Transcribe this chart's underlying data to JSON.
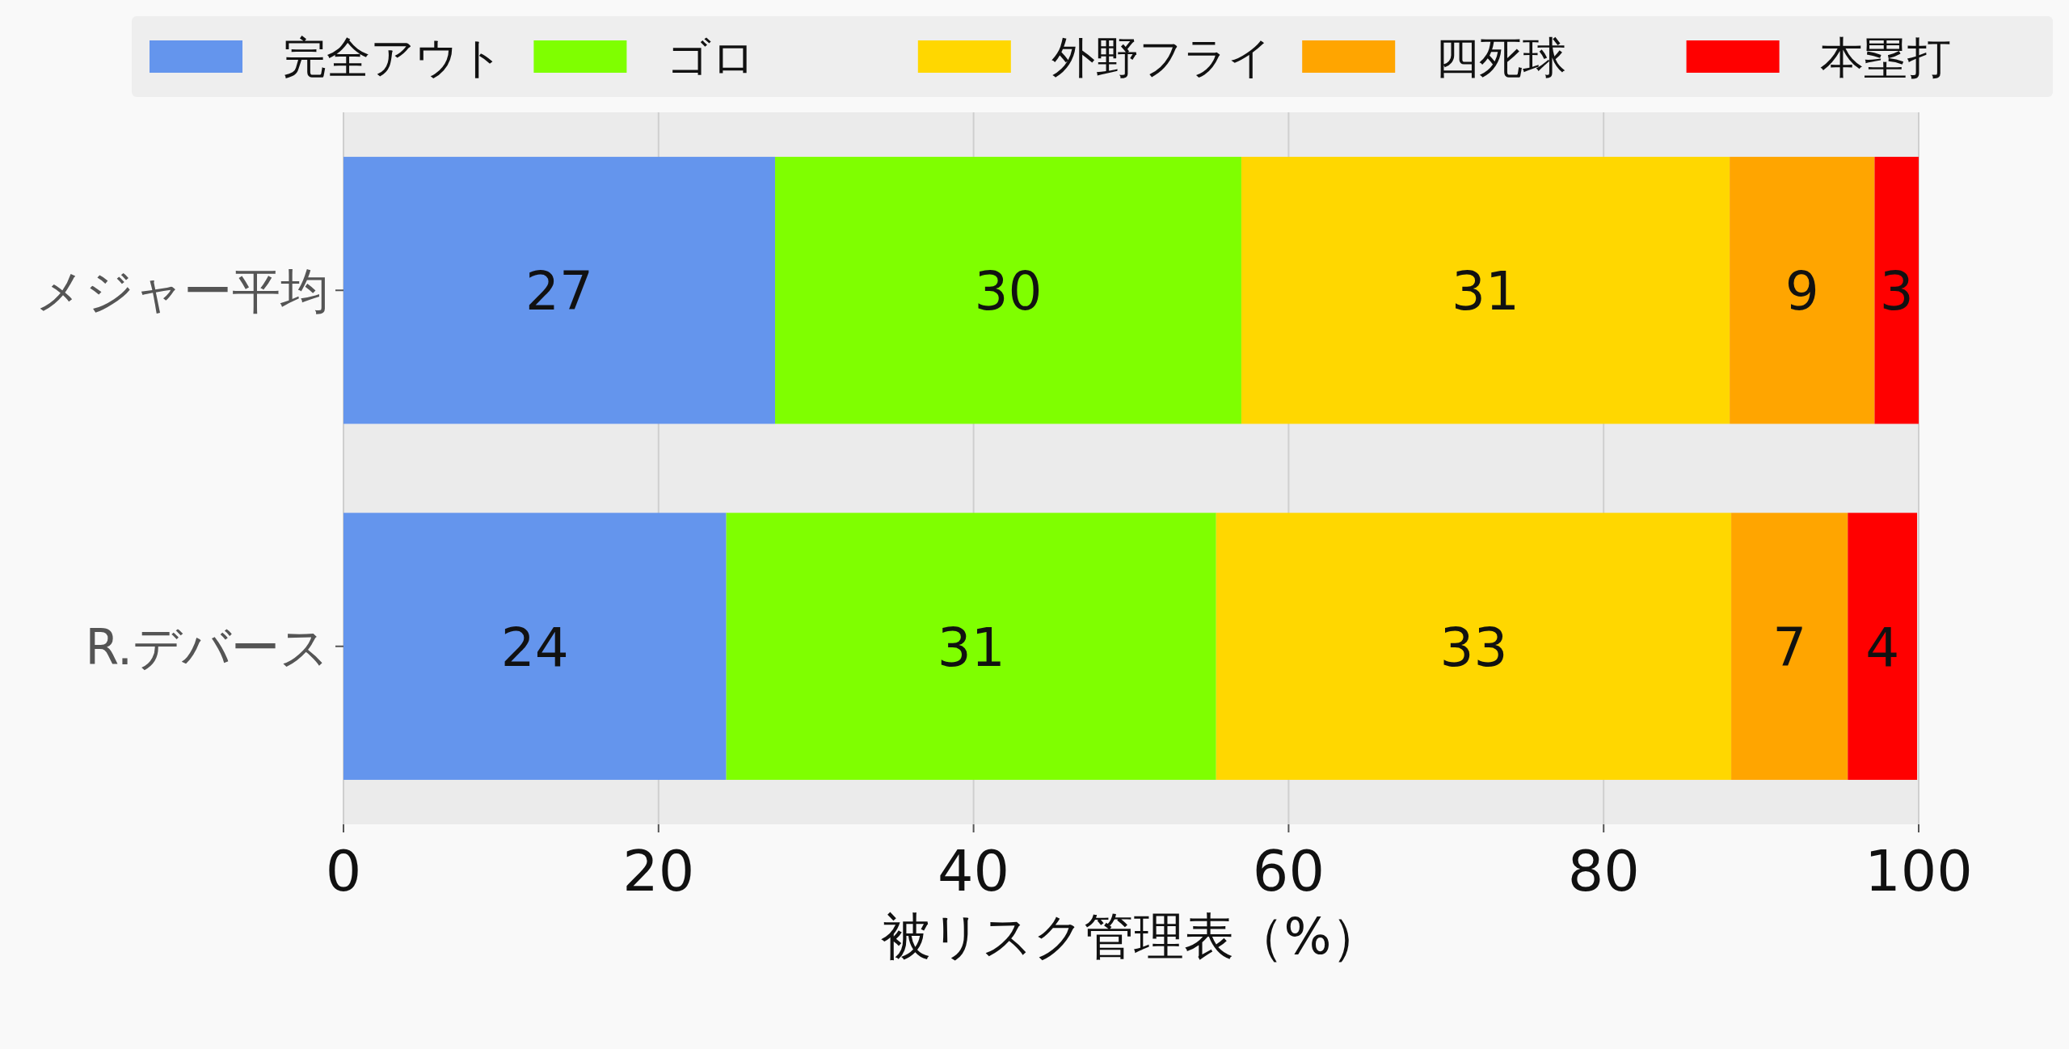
{
  "chart_data": {
    "type": "bar",
    "orientation": "horizontal",
    "stacked": true,
    "categories": [
      "メジャー平均",
      "R.デバース"
    ],
    "series": [
      {
        "name": "完全アウト",
        "color": "#6495ed",
        "values": [
          27.4,
          24.3
        ],
        "value_labels": [
          "27",
          "24"
        ]
      },
      {
        "name": "ゴロ",
        "color": "#7fff00",
        "values": [
          29.6,
          31.1
        ],
        "value_labels": [
          "30",
          "31"
        ]
      },
      {
        "name": "外野フライ",
        "color": "#ffd700",
        "values": [
          31.0,
          32.7
        ],
        "value_labels": [
          "31",
          "33"
        ]
      },
      {
        "name": "四死球",
        "color": "#ffa500",
        "values": [
          9.2,
          7.4
        ],
        "value_labels": [
          "9",
          "7"
        ]
      },
      {
        "name": "本塁打",
        "color": "#ff0000",
        "values": [
          2.8,
          4.4
        ],
        "value_labels": [
          "3",
          "4"
        ]
      }
    ],
    "xlabel": "被リスク管理表（%）",
    "xlim": [
      0,
      100
    ],
    "xticks": [
      0,
      20,
      40,
      60,
      80,
      100
    ],
    "grid": "x",
    "legend": "top"
  }
}
